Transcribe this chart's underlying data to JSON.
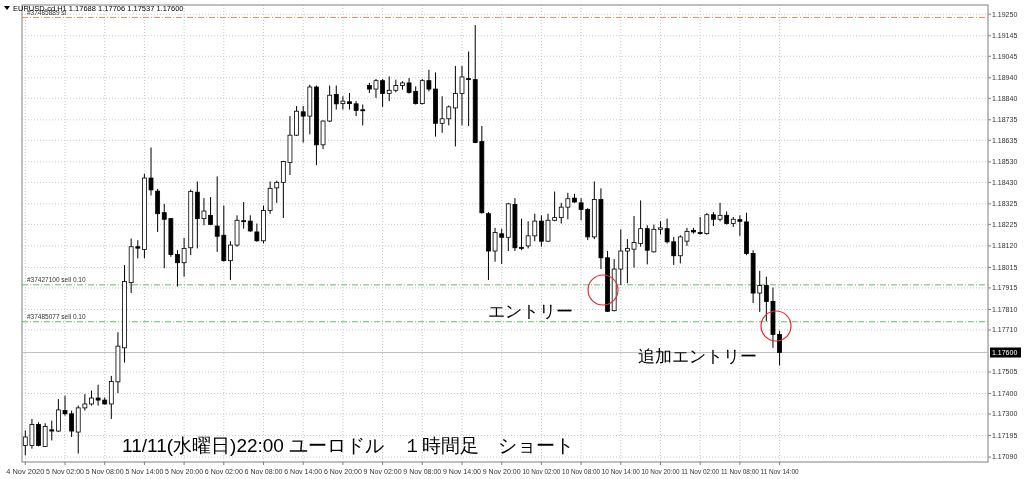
{
  "chart_data": {
    "type": "candlestick",
    "title": "EURUSD-cd,H1  1.17688 1.17706 1.17537 1.17600",
    "categories": [
      "4 Nov 2020",
      null,
      null,
      null,
      null,
      null,
      "5 Nov 02:00",
      null,
      null,
      null,
      null,
      null,
      "5 Nov 08:00",
      null,
      null,
      null,
      null,
      null,
      "5 Nov 14:00",
      null,
      null,
      null,
      null,
      null,
      "5 Nov 20:00",
      null,
      null,
      null,
      null,
      null,
      "6 Nov 02:00",
      null,
      null,
      null,
      null,
      null,
      "6 Nov 08:00",
      null,
      null,
      null,
      null,
      null,
      "6 Nov 14:00",
      null,
      null,
      null,
      null,
      null,
      "6 Nov 20:00",
      null,
      null,
      null,
      null,
      null,
      "9 Nov 02:00",
      null,
      null,
      null,
      null,
      null,
      "9 Nov 08:00",
      null,
      null,
      null,
      null,
      null,
      "9 Nov 14:00",
      null,
      null,
      null,
      null,
      null,
      "9 Nov 20:00",
      null,
      null,
      null,
      null,
      null,
      "10 Nov 02:00",
      null,
      null,
      null,
      null,
      null,
      "10 Nov 08:00",
      null,
      null,
      null,
      null,
      null,
      "10 Nov 14:00",
      null,
      null,
      null,
      null,
      null,
      "10 Nov 20:00",
      null,
      null,
      null,
      null,
      null,
      "11 Nov 02:00",
      null,
      null,
      null,
      null,
      null,
      "11 Nov 08:00",
      null,
      null,
      null,
      null,
      null,
      "11 Nov 14:00",
      null,
      null,
      null,
      null,
      null,
      null,
      null,
      null,
      null,
      null,
      null,
      null,
      null,
      null,
      null,
      null,
      null,
      null,
      null,
      null,
      null,
      null,
      null,
      null,
      null,
      null,
      null,
      null,
      null,
      null,
      null
    ],
    "ohlc": [
      [
        1.17147,
        1.1722,
        1.17099,
        1.17188
      ],
      [
        1.17147,
        1.17276,
        1.17131,
        1.17249
      ],
      [
        1.17249,
        1.1726,
        1.17142,
        1.17147
      ],
      [
        1.17142,
        1.17255,
        1.17139,
        1.17239
      ],
      [
        1.17223,
        1.17268,
        1.17171,
        1.17217
      ],
      [
        1.17217,
        1.17373,
        1.17212,
        1.1732
      ],
      [
        1.17317,
        1.17389,
        1.17292,
        1.17301
      ],
      [
        1.17301,
        1.17317,
        1.17188,
        1.17217
      ],
      [
        1.17212,
        1.17341,
        1.17107,
        1.1733
      ],
      [
        1.1733,
        1.17397,
        1.17317,
        1.17349
      ],
      [
        1.17349,
        1.17414,
        1.17341,
        1.17378
      ],
      [
        1.17378,
        1.17443,
        1.17341,
        1.17368
      ],
      [
        1.17368,
        1.17381,
        1.17346,
        1.17349
      ],
      [
        1.17349,
        1.17486,
        1.17276,
        1.17459
      ],
      [
        1.17457,
        1.17699,
        1.17402,
        1.17631
      ],
      [
        1.17623,
        1.18027,
        1.17551,
        1.17946
      ],
      [
        1.17941,
        1.18156,
        1.1789,
        1.18116
      ],
      [
        1.18116,
        1.18148,
        1.18059,
        1.18109
      ],
      [
        1.18103,
        1.18471,
        1.18059,
        1.18451
      ],
      [
        1.18451,
        1.186,
        1.18366,
        1.18393
      ],
      [
        1.18387,
        1.18398,
        1.18188,
        1.18277
      ],
      [
        1.18282,
        1.18325,
        1.18011,
        1.1825
      ],
      [
        1.18253,
        1.18256,
        1.18067,
        1.18078
      ],
      [
        1.18078,
        1.18099,
        1.17922,
        1.18038
      ],
      [
        1.18038,
        1.18159,
        1.1797,
        1.18108
      ],
      [
        1.18111,
        1.18395,
        1.18075,
        1.18385
      ],
      [
        1.18382,
        1.18434,
        1.18108,
        1.18253
      ],
      [
        1.18253,
        1.18353,
        1.18221,
        1.1829
      ],
      [
        1.18269,
        1.18358,
        1.18221,
        1.18225
      ],
      [
        1.18217,
        1.18459,
        1.18091,
        1.18167
      ],
      [
        1.18172,
        1.18317,
        1.18043,
        1.18048
      ],
      [
        1.18048,
        1.18143,
        1.17954,
        1.18124
      ],
      [
        1.18124,
        1.18269,
        1.18116,
        1.18245
      ],
      [
        1.18243,
        1.18334,
        1.18204,
        1.1824
      ],
      [
        1.18241,
        1.18269,
        1.18188,
        1.18193
      ],
      [
        1.18188,
        1.18229,
        1.1814,
        1.18145
      ],
      [
        1.18145,
        1.18317,
        1.18132,
        1.18293
      ],
      [
        1.18293,
        1.18434,
        1.18277,
        1.18401
      ],
      [
        1.18403,
        1.18438,
        1.1833,
        1.1843
      ],
      [
        1.1843,
        1.18535,
        1.18256,
        1.18532
      ],
      [
        1.18527,
        1.18753,
        1.18466,
        1.1866
      ],
      [
        1.1866,
        1.18802,
        1.18656,
        1.18777
      ],
      [
        1.18774,
        1.18802,
        1.18624,
        1.18753
      ],
      [
        1.18753,
        1.18906,
        1.18664,
        1.18895
      ],
      [
        1.18895,
        1.18902,
        1.18514,
        1.18613
      ],
      [
        1.18613,
        1.18732,
        1.18592,
        1.18729
      ],
      [
        1.18729,
        1.18902,
        1.18724,
        1.18855
      ],
      [
        1.18858,
        1.18902,
        1.18785,
        1.18813
      ],
      [
        1.18814,
        1.1885,
        1.18785,
        1.18826
      ],
      [
        1.18823,
        1.18866,
        1.18785,
        1.18814
      ],
      [
        1.18813,
        1.18826,
        1.18753,
        1.18781
      ],
      [
        1.18784,
        1.1881,
        1.18708,
        1.18781
      ],
      [
        1.18902,
        1.18915,
        1.18866,
        1.18885
      ],
      [
        1.18885,
        1.18934,
        1.18842,
        1.18926
      ],
      [
        1.18926,
        1.18934,
        1.18798,
        1.18863
      ],
      [
        1.18863,
        1.18947,
        1.18826,
        1.18879
      ],
      [
        1.18879,
        1.18931,
        1.18869,
        1.18902
      ],
      [
        1.18902,
        1.18923,
        1.18882,
        1.18915
      ],
      [
        1.18915,
        1.18939,
        1.18863,
        1.18869
      ],
      [
        1.18874,
        1.18898,
        1.1881,
        1.18814
      ],
      [
        1.18814,
        1.18934,
        1.1881,
        1.18926
      ],
      [
        1.18926,
        1.18979,
        1.18874,
        1.18885
      ],
      [
        1.18885,
        1.18966,
        1.18653,
        1.18718
      ],
      [
        1.18718,
        1.1885,
        1.18672,
        1.1874
      ],
      [
        1.1874,
        1.18805,
        1.18708,
        1.18798
      ],
      [
        1.18793,
        1.18998,
        1.18605,
        1.18863
      ],
      [
        1.18863,
        1.18998,
        1.18708,
        1.18944
      ],
      [
        1.18936,
        1.19068,
        1.18705,
        1.18931
      ],
      [
        1.18931,
        1.19197,
        1.18621,
        1.18624
      ],
      [
        1.18629,
        1.18705,
        1.18277,
        1.18282
      ],
      [
        1.18277,
        1.18285,
        1.17954,
        1.18095
      ],
      [
        1.18095,
        1.18208,
        1.18043,
        1.18185
      ],
      [
        1.18179,
        1.18204,
        1.18032,
        1.18162
      ],
      [
        1.18162,
        1.1833,
        1.18095,
        1.18325
      ],
      [
        1.18322,
        1.18353,
        1.18095,
        1.18111
      ],
      [
        1.18112,
        1.18253,
        1.18099,
        1.18109
      ],
      [
        1.1812,
        1.1824,
        1.18108,
        1.18169
      ],
      [
        1.18169,
        1.18277,
        1.18143,
        1.18241
      ],
      [
        1.18241,
        1.18269,
        1.18116,
        1.18143
      ],
      [
        1.18143,
        1.18277,
        1.1814,
        1.18245
      ],
      [
        1.18245,
        1.18385,
        1.1824,
        1.18258
      ],
      [
        1.18258,
        1.1833,
        1.18229,
        1.18309
      ],
      [
        1.18309,
        1.18379,
        1.1825,
        1.1835
      ],
      [
        1.18353,
        1.18374,
        1.1833,
        1.18334
      ],
      [
        1.1833,
        1.18353,
        1.18245,
        1.18298
      ],
      [
        1.18298,
        1.18304,
        1.18148,
        1.18164
      ],
      [
        1.18164,
        1.18434,
        1.18153,
        1.18346
      ],
      [
        1.18346,
        1.18401,
        1.18007,
        1.18062
      ],
      [
        1.18062,
        1.18095,
        1.17798,
        1.17801
      ],
      [
        1.17804,
        1.18056,
        1.17801,
        1.18007
      ],
      [
        1.18007,
        1.18201,
        1.1793,
        1.18095
      ],
      [
        1.18095,
        1.18153,
        1.17938,
        1.18108
      ],
      [
        1.18104,
        1.18266,
        1.18014,
        1.18137
      ],
      [
        1.18132,
        1.18342,
        1.18116,
        1.18204
      ],
      [
        1.18204,
        1.18221,
        1.1803,
        1.18099
      ],
      [
        1.18091,
        1.18224,
        1.18088,
        1.18201
      ],
      [
        1.18201,
        1.1824,
        1.18175,
        1.18208
      ],
      [
        1.18204,
        1.18253,
        1.18132,
        1.1814
      ],
      [
        1.1814,
        1.18164,
        1.18027,
        1.18072
      ],
      [
        1.18072,
        1.18172,
        1.18035,
        1.18164
      ],
      [
        1.18143,
        1.18208,
        1.1812,
        1.18191
      ],
      [
        1.18196,
        1.18208,
        1.1818,
        1.18188
      ],
      [
        1.18185,
        1.18261,
        1.18175,
        1.18182
      ],
      [
        1.1818,
        1.1828,
        1.18175,
        1.18272
      ],
      [
        1.18272,
        1.18285,
        1.18217,
        1.1825
      ],
      [
        1.1825,
        1.1833,
        1.1824,
        1.18269
      ],
      [
        1.18269,
        1.18288,
        1.18224,
        1.18229
      ],
      [
        1.18229,
        1.18261,
        1.18212,
        1.1825
      ],
      [
        1.18248,
        1.18269,
        1.18169,
        1.1824
      ],
      [
        1.18237,
        1.18282,
        1.18075,
        1.18083
      ],
      [
        1.18083,
        1.18099,
        1.17841,
        1.1789
      ],
      [
        1.1789,
        1.17998,
        1.17798,
        1.17927
      ],
      [
        1.17927,
        1.1797,
        1.17752,
        1.17849
      ],
      [
        1.17849,
        1.17917,
        1.17623,
        1.17688
      ],
      [
        1.17688,
        1.17706,
        1.17537,
        1.176
      ],
      null,
      null,
      null,
      null,
      null,
      null,
      null,
      null,
      null,
      null,
      null,
      null,
      null,
      null,
      null,
      null,
      null,
      null,
      null,
      null,
      null,
      null,
      null,
      null,
      null,
      null,
      null,
      null,
      null,
      null,
      null
    ],
    "ylim": [
      1.17066,
      1.19295
    ],
    "yticks": [
      {
        "value": 1.1925,
        "label": "1.19250"
      },
      {
        "value": 1.19145,
        "label": "1.19145"
      },
      {
        "value": 1.19045,
        "label": "1.19045"
      },
      {
        "value": 1.1894,
        "label": "1.18940"
      },
      {
        "value": 1.1884,
        "label": "1.18840"
      },
      {
        "value": 1.18735,
        "label": "1.18735"
      },
      {
        "value": 1.18635,
        "label": "1.18635"
      },
      {
        "value": 1.1853,
        "label": "1.18530"
      },
      {
        "value": 1.1843,
        "label": "1.18430"
      },
      {
        "value": 1.18325,
        "label": "1.18325"
      },
      {
        "value": 1.18225,
        "label": "1.18225"
      },
      {
        "value": 1.1812,
        "label": "1.18120"
      },
      {
        "value": 1.18015,
        "label": "1.18015"
      },
      {
        "value": 1.17915,
        "label": "1.17915"
      },
      {
        "value": 1.1781,
        "label": "1.17810"
      },
      {
        "value": 1.1771,
        "label": "1.17710"
      },
      {
        "value": 1.17505,
        "label": "1.17505"
      },
      {
        "value": 1.174,
        "label": "1.17400"
      },
      {
        "value": 1.173,
        "label": "1.17300"
      },
      {
        "value": 1.17195,
        "label": "1.17195"
      },
      {
        "value": 1.1709,
        "label": "1.17090"
      }
    ],
    "grid": true,
    "ref_lines": [
      {
        "axis": "y",
        "value": 1.19234,
        "label": "#37485889 sl",
        "color": "#ff8c69",
        "line_style": "dashed"
      },
      {
        "axis": "y",
        "value": 1.1793,
        "label": "#37427100 sell 0.10",
        "color": "#66bb66",
        "line_style": "dashed"
      },
      {
        "axis": "y",
        "value": 1.1775,
        "label": "#37485077 sell 0.10",
        "color": "#66bb66",
        "line_style": "dashed"
      },
      {
        "axis": "y",
        "value": 1.176,
        "label": "1.17600",
        "color": "#c0c0c0",
        "line_style": "solid"
      }
    ],
    "annotations": [
      "11/11(水曜日)22:00 ユーロドル　１時間足　ショート",
      "エントリー",
      "追加エントリー"
    ]
  }
}
